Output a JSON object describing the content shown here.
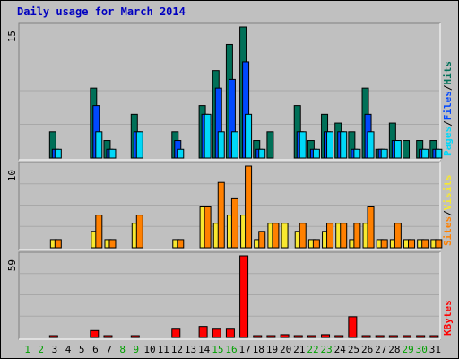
{
  "title": "Daily usage for March 2014",
  "chart_data": [
    {
      "type": "bar",
      "panel": "top",
      "ymax_label": "15",
      "ylim": [
        0,
        15
      ],
      "legend": [
        {
          "label": "Pages",
          "color": "#00d8f8"
        },
        {
          "label": "/",
          "color": "#000000"
        },
        {
          "label": "Files",
          "color": "#0048ff"
        },
        {
          "label": "/",
          "color": "#000000"
        },
        {
          "label": "Hits",
          "color": "#007058"
        }
      ],
      "series": [
        {
          "name": "Hits",
          "color": "#007058",
          "values": [
            0,
            0,
            3,
            0,
            0,
            8,
            2,
            0,
            5,
            0,
            0,
            3,
            0,
            6,
            10,
            13,
            15,
            2,
            3,
            0,
            6,
            2,
            5,
            4,
            3,
            8,
            1,
            4,
            2,
            2,
            2
          ]
        },
        {
          "name": "Files",
          "color": "#0048ff",
          "values": [
            0,
            0,
            1,
            0,
            0,
            6,
            1,
            0,
            3,
            0,
            0,
            2,
            0,
            5,
            8,
            9,
            11,
            1,
            0,
            0,
            3,
            1,
            3,
            3,
            1,
            5,
            1,
            2,
            0,
            1,
            1
          ]
        },
        {
          "name": "Pages",
          "color": "#00d8f8",
          "values": [
            0,
            0,
            1,
            0,
            0,
            3,
            1,
            0,
            3,
            0,
            0,
            1,
            0,
            5,
            3,
            3,
            5,
            1,
            0,
            0,
            3,
            1,
            3,
            3,
            1,
            3,
            1,
            2,
            0,
            1,
            1
          ]
        }
      ]
    },
    {
      "type": "bar",
      "panel": "middle",
      "ymax_label": "10",
      "ylim": [
        0,
        10
      ],
      "legend": [
        {
          "label": "Sites",
          "color": "#ff8000"
        },
        {
          "label": "/",
          "color": "#000000"
        },
        {
          "label": "Visits",
          "color": "#f8e830"
        }
      ],
      "series": [
        {
          "name": "Visits",
          "color": "#f8e830",
          "values": [
            0,
            0,
            1,
            0,
            0,
            2,
            1,
            0,
            3,
            0,
            0,
            1,
            0,
            5,
            3,
            4,
            4,
            1,
            3,
            3,
            2,
            1,
            2,
            3,
            1,
            3,
            1,
            1,
            1,
            1,
            1
          ]
        },
        {
          "name": "Sites",
          "color": "#ff8000",
          "values": [
            0,
            0,
            1,
            0,
            0,
            4,
            1,
            0,
            4,
            0,
            0,
            1,
            0,
            5,
            8,
            6,
            10,
            2,
            3,
            0,
            3,
            1,
            3,
            3,
            3,
            5,
            1,
            3,
            1,
            1,
            1
          ]
        }
      ]
    },
    {
      "type": "bar",
      "panel": "bottom",
      "ymax_label": "59",
      "ylim": [
        0,
        59
      ],
      "legend": [
        {
          "label": "KBytes",
          "color": "#ff0000"
        }
      ],
      "series": [
        {
          "name": "KBytes",
          "color": "#ff0000",
          "values": [
            0,
            0,
            1,
            0,
            0,
            5,
            1,
            0,
            1,
            0,
            0,
            6,
            0,
            8,
            6,
            6,
            59,
            1,
            1,
            2,
            1,
            1,
            2,
            1,
            15,
            1,
            1,
            1,
            1,
            1,
            1
          ]
        }
      ]
    }
  ],
  "x_labels": [
    "1",
    "2",
    "3",
    "4",
    "5",
    "6",
    "7",
    "8",
    "9",
    "10",
    "11",
    "12",
    "13",
    "14",
    "15",
    "16",
    "17",
    "18",
    "19",
    "20",
    "21",
    "22",
    "23",
    "24",
    "25",
    "26",
    "27",
    "28",
    "29",
    "30",
    "31"
  ],
  "weekend_days": [
    1,
    2,
    8,
    9,
    15,
    16,
    22,
    23,
    29,
    30
  ],
  "colors": {
    "weekday_label": "#000000",
    "weekend_label": "#00a000"
  }
}
